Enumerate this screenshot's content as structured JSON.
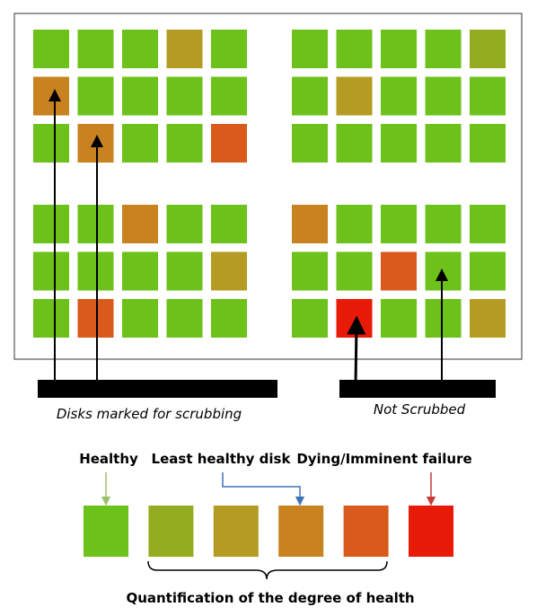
{
  "colors": {
    "healthy": "#6cc11a",
    "tier1": "#94ac20",
    "tier2": "#b49c22",
    "tier3": "#c88220",
    "tier4": "#d95a1a",
    "failing": "#e81a08",
    "arrow_healthy": "#9bc06b",
    "arrow_least": "#3f72b9",
    "arrow_failing": "#c83a3a"
  },
  "groups": [
    {
      "name": "top-left",
      "cells": [
        [
          0,
          0,
          0,
          2,
          0
        ],
        [
          3,
          0,
          0,
          0,
          0
        ],
        [
          0,
          3,
          0,
          0,
          4
        ]
      ]
    },
    {
      "name": "top-right",
      "cells": [
        [
          0,
          0,
          0,
          0,
          1
        ],
        [
          0,
          2,
          0,
          0,
          0
        ],
        [
          0,
          0,
          0,
          0,
          0
        ]
      ]
    },
    {
      "name": "bottom-left",
      "cells": [
        [
          0,
          0,
          3,
          0,
          0
        ],
        [
          0,
          0,
          0,
          0,
          2
        ],
        [
          0,
          4,
          0,
          0,
          0
        ]
      ]
    },
    {
      "name": "bottom-right",
      "cells": [
        [
          3,
          0,
          0,
          0,
          0
        ],
        [
          0,
          0,
          4,
          0,
          0
        ],
        [
          0,
          5,
          0,
          0,
          2
        ]
      ]
    }
  ],
  "labels": {
    "scrub_caption": "Disks marked for scrubbing",
    "not_scrubbed_caption": "Not Scrubbed",
    "healthy": "Healthy",
    "least_healthy": "Least healthy disk",
    "dying": "Dying/Imminent failure",
    "quantification": "Quantification of the degree of health"
  },
  "scale": [
    0,
    1,
    2,
    3,
    4,
    5
  ]
}
